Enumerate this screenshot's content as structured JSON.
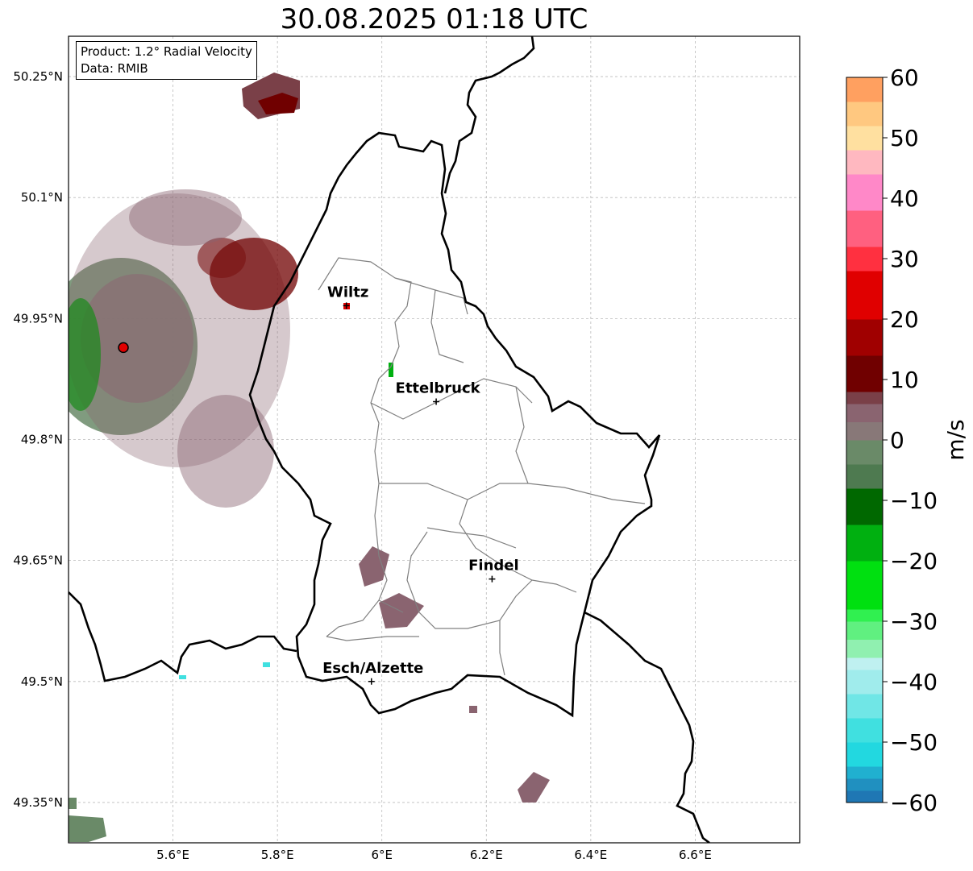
{
  "title": "30.08.2025 01:18 UTC",
  "info": {
    "product": "Product: 1.2° Radial Velocity",
    "data": "Data: RMIB"
  },
  "map": {
    "lon_range": [
      5.4,
      6.8
    ],
    "lat_range": [
      49.3,
      50.3
    ],
    "lat_ticks": [
      {
        "value": 50.25,
        "label": "50.25°N"
      },
      {
        "value": 50.1,
        "label": "50.1°N"
      },
      {
        "value": 49.95,
        "label": "49.95°N"
      },
      {
        "value": 49.8,
        "label": "49.8°N"
      },
      {
        "value": 49.65,
        "label": "49.65°N"
      },
      {
        "value": 49.5,
        "label": "49.5°N"
      },
      {
        "value": 49.35,
        "label": "49.35°N"
      }
    ],
    "lon_ticks": [
      {
        "value": 5.6,
        "label": "5.6°E"
      },
      {
        "value": 5.8,
        "label": "5.8°E"
      },
      {
        "value": 6.0,
        "label": "6°E"
      },
      {
        "value": 6.2,
        "label": "6.2°E"
      },
      {
        "value": 6.4,
        "label": "6.4°E"
      },
      {
        "value": 6.6,
        "label": "6.6°E"
      }
    ],
    "grid": true,
    "radar_site": {
      "lon": 5.505,
      "lat": 49.914
    },
    "cities": [
      {
        "name": "Wiltz",
        "lon": 5.932,
        "lat": 49.966
      },
      {
        "name": "Ettelbruck",
        "lon": 6.104,
        "lat": 49.847
      },
      {
        "name": "Findel",
        "lon": 6.211,
        "lat": 49.627
      },
      {
        "name": "Esch/Alzette",
        "lon": 5.98,
        "lat": 49.5
      }
    ]
  },
  "colorbar": {
    "label": "m/s",
    "min": -60,
    "max": 60,
    "ticks": [
      {
        "value": 60,
        "label": "60"
      },
      {
        "value": 50,
        "label": "50"
      },
      {
        "value": 40,
        "label": "40"
      },
      {
        "value": 30,
        "label": "30"
      },
      {
        "value": 20,
        "label": "20"
      },
      {
        "value": 10,
        "label": "10"
      },
      {
        "value": 0,
        "label": "0"
      },
      {
        "value": -10,
        "label": "−10"
      },
      {
        "value": -20,
        "label": "−20"
      },
      {
        "value": -30,
        "label": "−30"
      },
      {
        "value": -40,
        "label": "−40"
      },
      {
        "value": -50,
        "label": "−50"
      },
      {
        "value": -60,
        "label": "−60"
      }
    ],
    "color_stops": [
      {
        "from": -60,
        "to": -58,
        "color": "#1f77b4"
      },
      {
        "from": -58,
        "to": -56,
        "color": "#2090c0"
      },
      {
        "from": -56,
        "to": -54,
        "color": "#20b0d0"
      },
      {
        "from": -54,
        "to": -50,
        "color": "#22d8e0"
      },
      {
        "from": -50,
        "to": -46,
        "color": "#40e0e0"
      },
      {
        "from": -46,
        "to": -42,
        "color": "#70e6e6"
      },
      {
        "from": -42,
        "to": -38,
        "color": "#a0ecec"
      },
      {
        "from": -38,
        "to": -36,
        "color": "#bff0f0"
      },
      {
        "from": -36,
        "to": -33,
        "color": "#90f0b0"
      },
      {
        "from": -33,
        "to": -30,
        "color": "#60f080"
      },
      {
        "from": -30,
        "to": -28,
        "color": "#30f050"
      },
      {
        "from": -28,
        "to": -20,
        "color": "#00e010"
      },
      {
        "from": -20,
        "to": -14,
        "color": "#00b010"
      },
      {
        "from": -14,
        "to": -8,
        "color": "#006800"
      },
      {
        "from": -8,
        "to": -4,
        "color": "#4e7a50"
      },
      {
        "from": -4,
        "to": 0,
        "color": "#6a8a68"
      },
      {
        "from": 0,
        "to": 3,
        "color": "#887878"
      },
      {
        "from": 3,
        "to": 6,
        "color": "#8a6470"
      },
      {
        "from": 6,
        "to": 8,
        "color": "#7a4048"
      },
      {
        "from": 8,
        "to": 14,
        "color": "#700000"
      },
      {
        "from": 14,
        "to": 20,
        "color": "#a00000"
      },
      {
        "from": 20,
        "to": 28,
        "color": "#e00000"
      },
      {
        "from": 28,
        "to": 32,
        "color": "#ff3040"
      },
      {
        "from": 32,
        "to": 38,
        "color": "#ff6080"
      },
      {
        "from": 38,
        "to": 44,
        "color": "#ff88c8"
      },
      {
        "from": 44,
        "to": 48,
        "color": "#ffb8c0"
      },
      {
        "from": 48,
        "to": 52,
        "color": "#ffe0a0"
      },
      {
        "from": 52,
        "to": 56,
        "color": "#ffc880"
      },
      {
        "from": 56,
        "to": 60,
        "color": "#ffa060"
      }
    ]
  }
}
